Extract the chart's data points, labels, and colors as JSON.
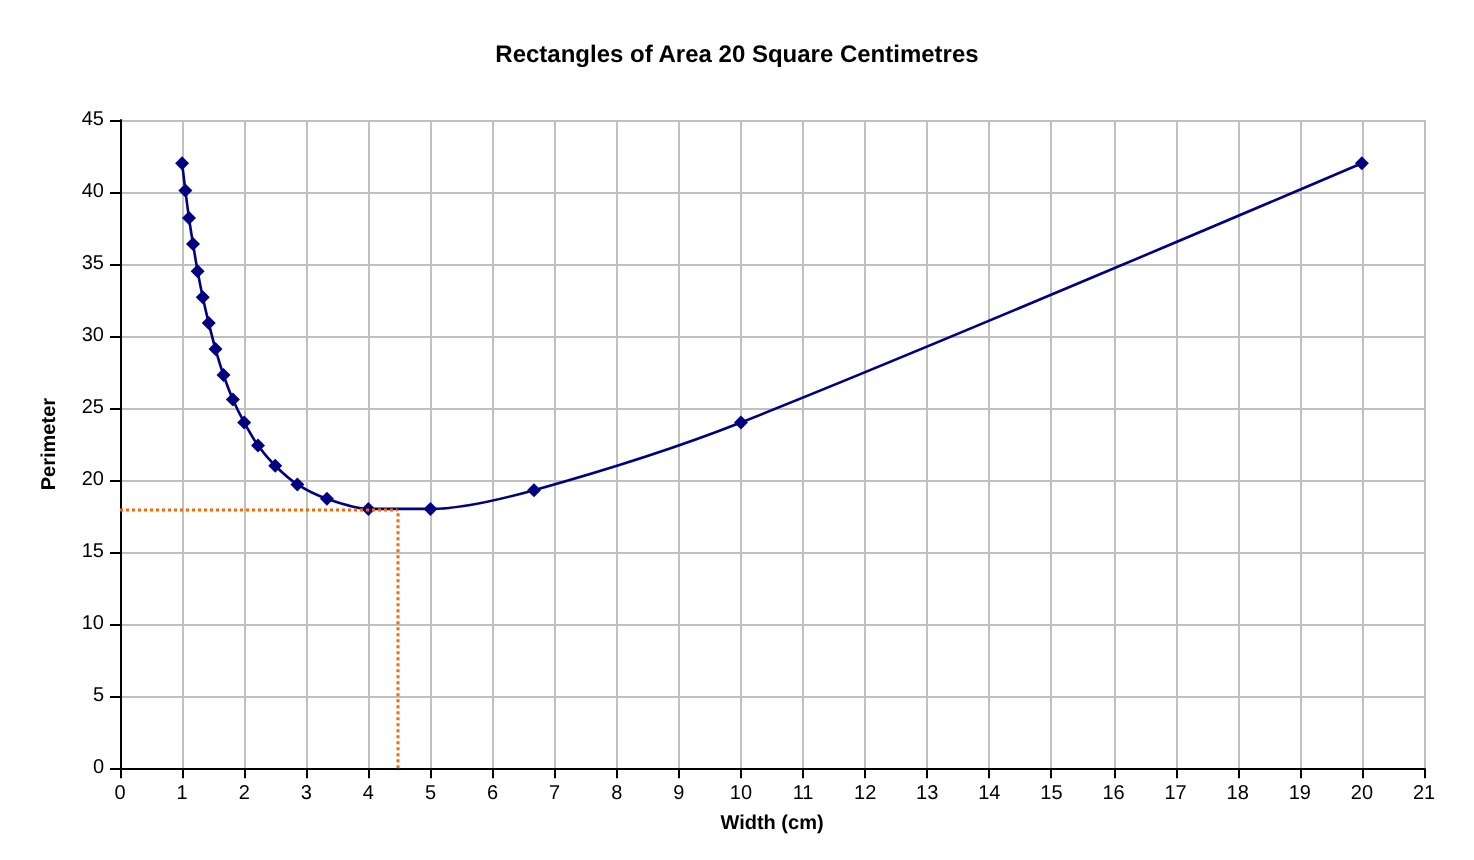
{
  "chart_data": {
    "type": "line",
    "title": "Rectangles of Area 20 Square Centimetres",
    "xlabel": "Width (cm)",
    "ylabel": "Perimeter",
    "series": [
      {
        "color": "#000080",
        "x": [
          1,
          1.053,
          1.111,
          1.176,
          1.25,
          1.333,
          1.429,
          1.538,
          1.667,
          1.818,
          2,
          2.222,
          2.5,
          2.857,
          3.333,
          4,
          5,
          6.667,
          10,
          20
        ],
        "values": [
          42,
          40.1,
          38.2,
          36.4,
          34.5,
          32.7,
          30.9,
          29.1,
          27.3,
          25.6,
          24,
          22.4,
          21,
          19.7,
          18.7,
          18,
          18,
          19.3,
          24,
          42
        ]
      }
    ],
    "xlim": [
      0,
      21
    ],
    "xticks": [
      0,
      1,
      2,
      3,
      4,
      5,
      6,
      7,
      8,
      9,
      10,
      11,
      12,
      13,
      14,
      15,
      16,
      17,
      18,
      19,
      20,
      21
    ],
    "ylim": [
      0,
      45
    ],
    "yticks": [
      0,
      5,
      10,
      15,
      20,
      25,
      30,
      35,
      40,
      45
    ],
    "grid": true,
    "marker": "diamond",
    "line_style": "solid",
    "ref_lines": [
      {
        "axis": "x",
        "value": 4.47,
        "color": "#ff6600",
        "line_style": "dotted"
      },
      {
        "axis": "y",
        "value": 17.9,
        "color": "#ff6600",
        "line_style": "dotted"
      }
    ]
  }
}
